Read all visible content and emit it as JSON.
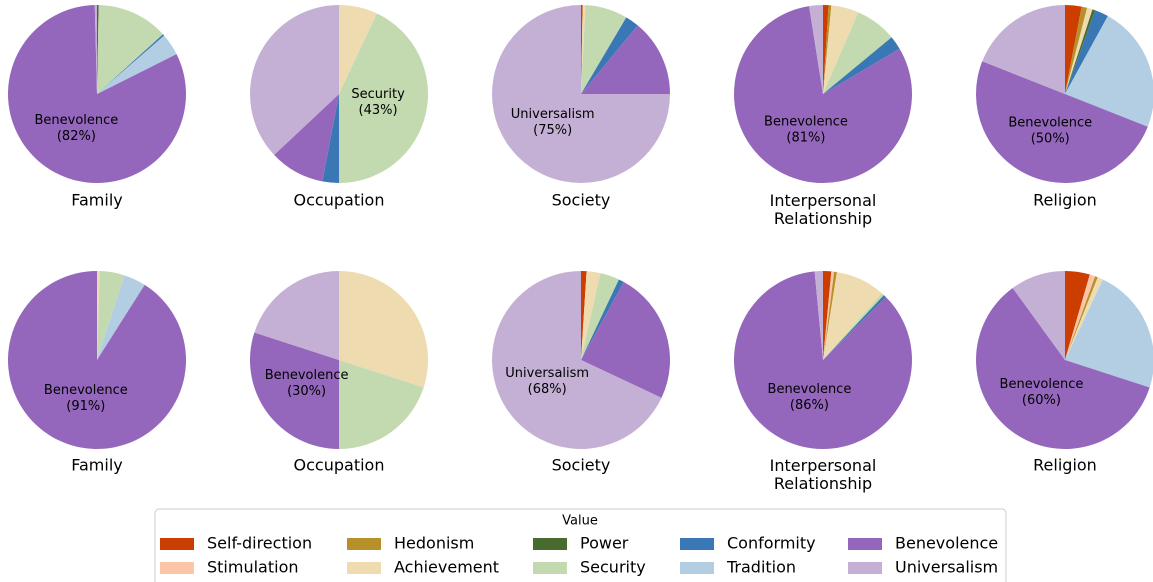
{
  "chart_data": [
    {
      "type": "pie",
      "title": "Family",
      "categories": [
        "Self-direction",
        "Stimulation",
        "Hedonism",
        "Achievement",
        "Power",
        "Security",
        "Conformity",
        "Tradition",
        "Benevolence",
        "Universalism"
      ],
      "values": [
        0,
        0,
        0,
        0,
        0.3,
        13,
        0.3,
        4,
        82,
        0.4
      ],
      "value_labels": [
        null,
        null,
        null,
        null,
        null,
        null,
        null,
        null,
        "(82%)",
        null
      ]
    },
    {
      "type": "pie",
      "title": "Occupation",
      "categories": [
        "Self-direction",
        "Stimulation",
        "Hedonism",
        "Achievement",
        "Power",
        "Security",
        "Conformity",
        "Tradition",
        "Benevolence",
        "Universalism"
      ],
      "values": [
        0,
        0,
        0,
        7,
        0,
        43,
        3,
        0,
        10,
        37
      ],
      "value_labels": [
        null,
        null,
        null,
        null,
        null,
        "(43%)",
        null,
        null,
        null,
        null
      ]
    },
    {
      "type": "pie",
      "title": "Society",
      "categories": [
        "Self-direction",
        "Stimulation",
        "Hedonism",
        "Achievement",
        "Power",
        "Security",
        "Conformity",
        "Tradition",
        "Benevolence",
        "Universalism"
      ],
      "values": [
        0.3,
        0,
        0,
        0.5,
        0,
        7.7,
        2.5,
        0,
        14,
        75
      ],
      "value_labels": [
        null,
        null,
        null,
        null,
        null,
        null,
        null,
        null,
        null,
        "(75%)"
      ]
    },
    {
      "type": "pie",
      "title": "Interpersonal Relationship",
      "categories": [
        "Self-direction",
        "Stimulation",
        "Hedonism",
        "Achievement",
        "Power",
        "Security",
        "Conformity",
        "Tradition",
        "Benevolence",
        "Universalism"
      ],
      "values": [
        1,
        0,
        0.5,
        5,
        0,
        7.5,
        2.5,
        0,
        81,
        2.5
      ],
      "value_labels": [
        null,
        null,
        null,
        null,
        null,
        null,
        null,
        null,
        "(81%)",
        null
      ]
    },
    {
      "type": "pie",
      "title": "Religion",
      "categories": [
        "Self-direction",
        "Stimulation",
        "Hedonism",
        "Achievement",
        "Power",
        "Security",
        "Conformity",
        "Tradition",
        "Benevolence",
        "Universalism"
      ],
      "values": [
        3,
        0,
        1,
        1,
        0.5,
        0,
        2.5,
        23,
        50,
        19
      ],
      "value_labels": [
        null,
        null,
        null,
        null,
        null,
        null,
        null,
        null,
        "(50%)",
        null
      ]
    },
    {
      "type": "pie",
      "title": "Family",
      "categories": [
        "Self-direction",
        "Stimulation",
        "Hedonism",
        "Achievement",
        "Power",
        "Security",
        "Conformity",
        "Tradition",
        "Benevolence",
        "Universalism"
      ],
      "values": [
        0,
        0,
        0,
        0.5,
        0,
        4.5,
        0,
        4,
        91,
        0
      ],
      "value_labels": [
        null,
        null,
        null,
        null,
        null,
        null,
        null,
        null,
        "(91%)",
        null
      ]
    },
    {
      "type": "pie",
      "title": "Occupation",
      "categories": [
        "Self-direction",
        "Stimulation",
        "Hedonism",
        "Achievement",
        "Power",
        "Security",
        "Conformity",
        "Tradition",
        "Benevolence",
        "Universalism"
      ],
      "values": [
        0,
        0,
        0,
        30,
        0,
        20,
        0,
        0,
        30,
        20
      ],
      "value_labels": [
        null,
        null,
        null,
        null,
        null,
        null,
        null,
        null,
        "(30%)",
        null
      ]
    },
    {
      "type": "pie",
      "title": "Society",
      "categories": [
        "Self-direction",
        "Stimulation",
        "Hedonism",
        "Achievement",
        "Power",
        "Security",
        "Conformity",
        "Tradition",
        "Benevolence",
        "Universalism"
      ],
      "values": [
        1,
        0,
        0,
        2.5,
        0,
        3.5,
        1,
        0,
        24,
        68
      ],
      "value_labels": [
        null,
        null,
        null,
        null,
        null,
        null,
        null,
        null,
        null,
        "(68%)"
      ]
    },
    {
      "type": "pie",
      "title": "Interpersonal Relationship",
      "categories": [
        "Self-direction",
        "Stimulation",
        "Hedonism",
        "Achievement",
        "Power",
        "Security",
        "Conformity",
        "Tradition",
        "Benevolence",
        "Universalism"
      ],
      "values": [
        1.5,
        0.5,
        0.5,
        9,
        0,
        0.5,
        0.5,
        0,
        86,
        1.5
      ],
      "value_labels": [
        null,
        null,
        null,
        null,
        null,
        null,
        null,
        null,
        "(86%)",
        null
      ]
    },
    {
      "type": "pie",
      "title": "Religion",
      "categories": [
        "Self-direction",
        "Stimulation",
        "Hedonism",
        "Achievement",
        "Power",
        "Security",
        "Conformity",
        "Tradition",
        "Benevolence",
        "Universalism"
      ],
      "values": [
        4.5,
        1,
        0.5,
        1,
        0,
        0,
        0,
        23,
        60,
        10
      ],
      "value_labels": [
        null,
        null,
        null,
        null,
        null,
        null,
        null,
        null,
        "(60%)",
        null
      ]
    }
  ],
  "colors": [
    "#cc3d00",
    "#fcc5a8",
    "#b8902a",
    "#eedcb0",
    "#4a6b2e",
    "#c3d9b0",
    "#3a78b5",
    "#b3cde3",
    "#9467bd",
    "#c5b0d5"
  ],
  "legend": {
    "title": "Value",
    "categories": [
      "Self-direction",
      "Stimulation",
      "Hedonism",
      "Achievement",
      "Power",
      "Security",
      "Conformity",
      "Tradition",
      "Benevolence",
      "Universalism"
    ]
  }
}
